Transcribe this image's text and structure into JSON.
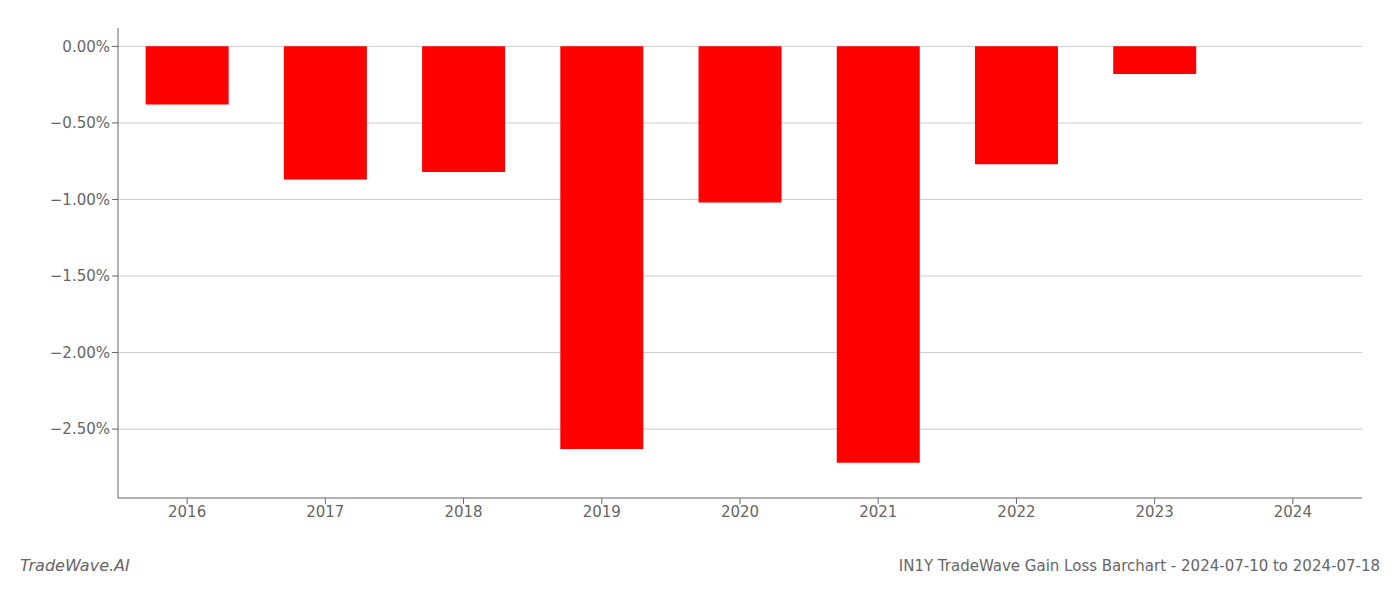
{
  "chart_data": {
    "type": "bar",
    "categories": [
      "2016",
      "2017",
      "2018",
      "2019",
      "2020",
      "2021",
      "2022",
      "2023",
      "2024"
    ],
    "values": [
      -0.38,
      -0.87,
      -0.82,
      -2.63,
      -1.02,
      -2.72,
      -0.77,
      -0.18,
      0.0
    ],
    "color": "#ff0000",
    "ylim": [
      -2.95,
      0.12
    ],
    "yticks": [
      {
        "value": 0.0,
        "label": "0.00%"
      },
      {
        "value": -0.5,
        "label": "−0.50%"
      },
      {
        "value": -1.0,
        "label": "−1.00%"
      },
      {
        "value": -1.5,
        "label": "−1.50%"
      },
      {
        "value": -2.0,
        "label": "−2.00%"
      },
      {
        "value": -2.5,
        "label": "−2.50%"
      }
    ],
    "grid": true,
    "annotations": [
      "TradeWave.AI",
      "IN1Y TradeWave Gain Loss Barchart - 2024-07-10 to 2024-07-18"
    ]
  }
}
